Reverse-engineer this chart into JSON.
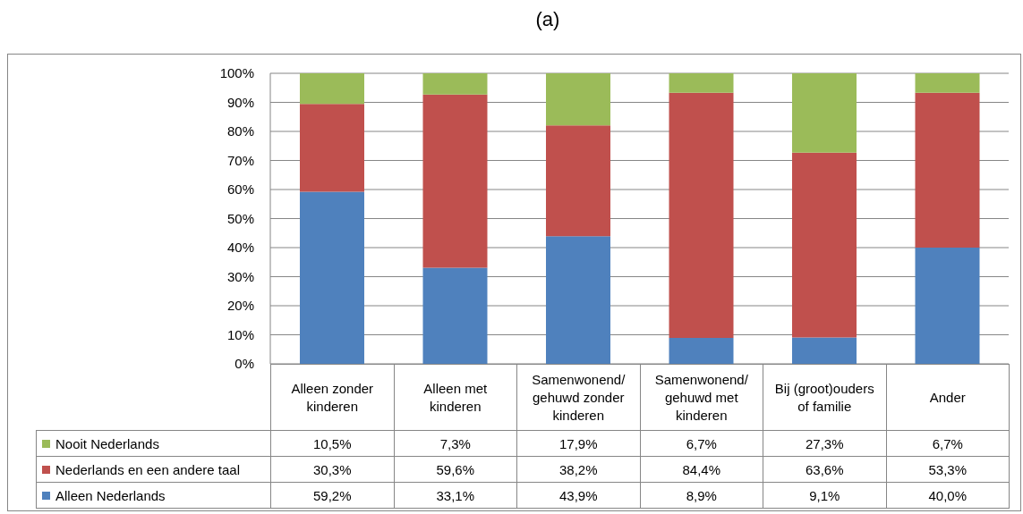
{
  "chart_data": {
    "type": "bar",
    "title": "(a)",
    "categories": [
      "Alleen zonder kinderen",
      "Alleen met kinderen",
      "Samenwonend/gehuwd zonder kinderen",
      "Samenwonend/gehuwd met kinderen",
      "Bij (groot)ouders of familie",
      "Ander"
    ],
    "series": [
      {
        "name": "Alleen Nederlands",
        "color": "#4f81bd",
        "values": [
          59.2,
          33.1,
          43.9,
          8.9,
          9.1,
          40.0
        ],
        "value_labels": [
          "59,2%",
          "33,1%",
          "43,9%",
          "8,9%",
          "9,1%",
          "40,0%"
        ]
      },
      {
        "name": "Nederlands en een andere taal",
        "color": "#c0504d",
        "values": [
          30.3,
          59.6,
          38.2,
          84.4,
          63.6,
          53.3
        ],
        "value_labels": [
          "30,3%",
          "59,6%",
          "38,2%",
          "84,4%",
          "63,6%",
          "53,3%"
        ]
      },
      {
        "name": "Nooit Nederlands",
        "color": "#9bbb59",
        "values": [
          10.5,
          7.3,
          17.9,
          6.7,
          27.3,
          6.7
        ],
        "value_labels": [
          "10,5%",
          "7,3%",
          "17,9%",
          "6,7%",
          "27,3%",
          "6,7%"
        ]
      }
    ],
    "stacked": true,
    "ylim": [
      0,
      100
    ],
    "yticks": [
      {
        "value": 0,
        "label": "0%"
      },
      {
        "value": 10,
        "label": "10%"
      },
      {
        "value": 20,
        "label": "20%"
      },
      {
        "value": 30,
        "label": "30%"
      },
      {
        "value": 40,
        "label": "40%"
      },
      {
        "value": 50,
        "label": "50%"
      },
      {
        "value": 60,
        "label": "60%"
      },
      {
        "value": 70,
        "label": "70%"
      },
      {
        "value": 80,
        "label": "80%"
      },
      {
        "value": 90,
        "label": "90%"
      },
      {
        "value": 100,
        "label": "100%"
      }
    ],
    "grid": "y",
    "legend": "bottom"
  }
}
